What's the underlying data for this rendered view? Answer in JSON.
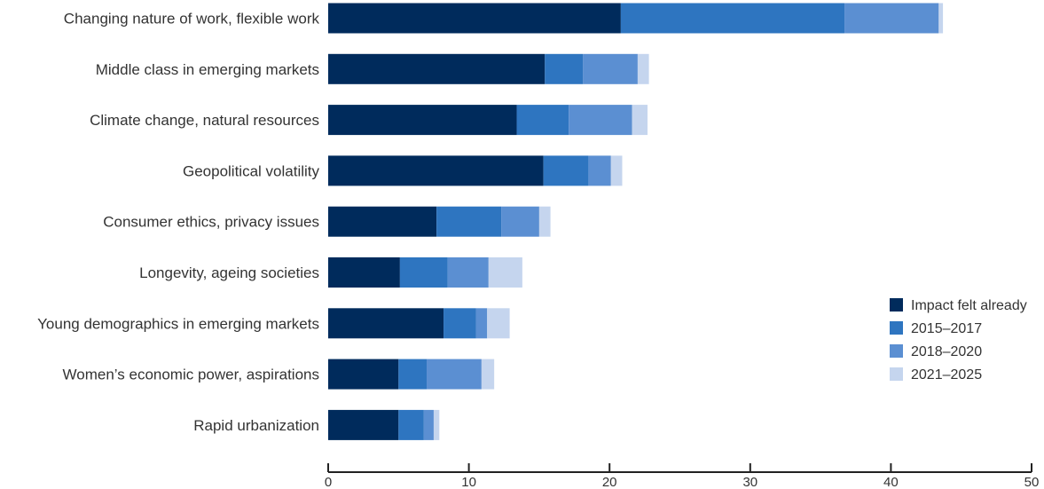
{
  "chart_data": {
    "type": "bar",
    "orientation": "horizontal",
    "stacked": true,
    "categories": [
      "Changing nature of work, flexible work",
      "Middle class in emerging markets",
      "Climate change, natural resources",
      "Geopolitical volatility",
      "Consumer ethics, privacy issues",
      "Longevity, ageing societies",
      "Young demographics in emerging markets",
      "Women’s economic power, aspirations",
      "Rapid urbanization"
    ],
    "series": [
      {
        "name": "Impact felt already",
        "color": "#002b5c",
        "values": [
          20.8,
          15.4,
          13.4,
          15.3,
          7.7,
          5.1,
          8.2,
          5.0,
          5.0
        ]
      },
      {
        "name": "2015–2017",
        "color": "#2e75c0",
        "values": [
          15.9,
          2.7,
          3.7,
          3.2,
          4.6,
          3.4,
          2.3,
          2.0,
          1.8
        ]
      },
      {
        "name": "2018–2020",
        "color": "#5b8fd2",
        "values": [
          6.7,
          3.9,
          4.5,
          1.6,
          2.7,
          2.9,
          0.8,
          3.9,
          0.7
        ]
      },
      {
        "name": "2021–2025",
        "color": "#c5d5ee",
        "values": [
          0.3,
          0.8,
          1.1,
          0.8,
          0.8,
          2.4,
          1.6,
          0.9,
          0.4
        ]
      }
    ],
    "xlim": [
      0,
      50
    ],
    "xticks": [
      0,
      10,
      20,
      30,
      40,
      50
    ],
    "xlabel": "",
    "ylabel": "",
    "title": "",
    "legend_position": "right",
    "grid": false
  }
}
